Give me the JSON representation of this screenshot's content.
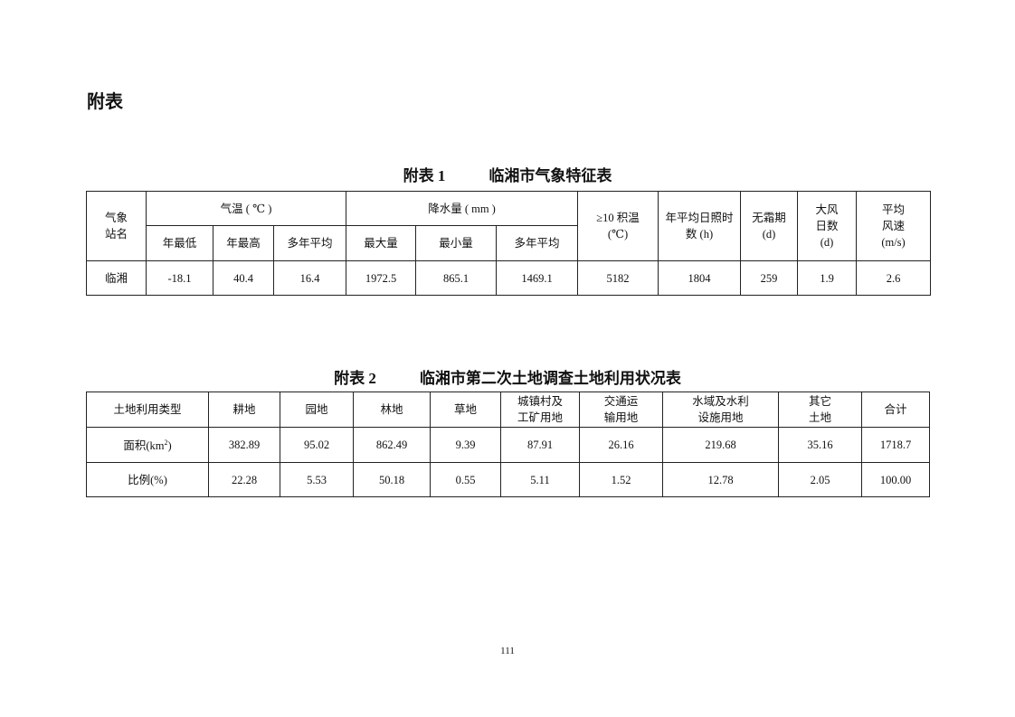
{
  "heading": "附表",
  "table1": {
    "caption_no": "附表 1",
    "caption_title": "临湘市气象特征表",
    "station_header": "气象\n站名",
    "temp_header": "气温 ( ℃ )",
    "rain_header": "降水量 ( mm )",
    "temp_sub": [
      "年最低",
      "年最高",
      "多年平均"
    ],
    "rain_sub": [
      "最大量",
      "最小量",
      "多年平均"
    ],
    "other_headers": [
      "≥10 积温\n(℃)",
      "年平均日照时\n数 (h)",
      "无霜期\n(d)",
      "大风\n日数\n(d)",
      "平均\n风速\n(m/s)"
    ],
    "rows": [
      [
        "临湘",
        "-18.1",
        "40.4",
        "16.4",
        "1972.5",
        "865.1",
        "1469.1",
        "5182",
        "1804",
        "259",
        "1.9",
        "2.6"
      ]
    ]
  },
  "table2": {
    "caption_no": "附表 2",
    "caption_title": "临湘市第二次土地调查土地利用状况表",
    "headers": [
      "土地利用类型",
      "耕地",
      "园地",
      "林地",
      "草地",
      "城镇村及\n工矿用地",
      "交通运\n输用地",
      "水域及水利\n设施用地",
      "其它\n土地",
      "合计"
    ],
    "area_label": "面积(km",
    "area_sup": "2",
    "area_close": ")",
    "area_values": [
      "382.89",
      "95.02",
      "862.49",
      "9.39",
      "87.91",
      "26.16",
      "219.68",
      "35.16",
      "1718.7"
    ],
    "ratio_label": "比例(%)",
    "ratio_values": [
      "22.28",
      "5.53",
      "50.18",
      "0.55",
      "5.11",
      "1.52",
      "12.78",
      "2.05",
      "100.00"
    ]
  },
  "page_number": "111"
}
